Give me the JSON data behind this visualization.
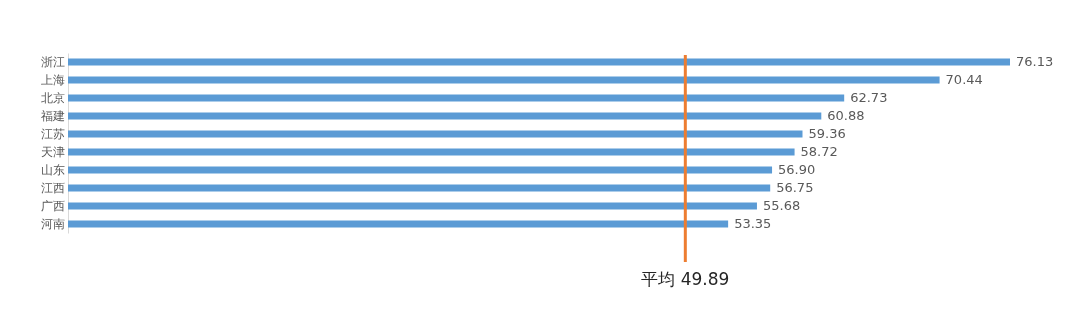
{
  "chart_data": {
    "type": "bar",
    "orientation": "horizontal",
    "categories": [
      "浙江",
      "上海",
      "北京",
      "福建",
      "江苏",
      "天津",
      "山东",
      "江西",
      "广西",
      "河南"
    ],
    "values": [
      76.13,
      70.44,
      62.73,
      60.88,
      59.36,
      58.72,
      56.9,
      56.75,
      55.68,
      53.35
    ],
    "value_labels": [
      "76.13",
      "70.44",
      "62.73",
      "60.88",
      "59.36",
      "58.72",
      "56.90",
      "56.75",
      "55.68",
      "53.35"
    ],
    "color": "#5b9bd5",
    "ref_lines": [
      {
        "axis": "x",
        "value": 49.89,
        "label": "平均 49.89",
        "color": "#ed7d31"
      }
    ],
    "tick_labels": "y"
  }
}
